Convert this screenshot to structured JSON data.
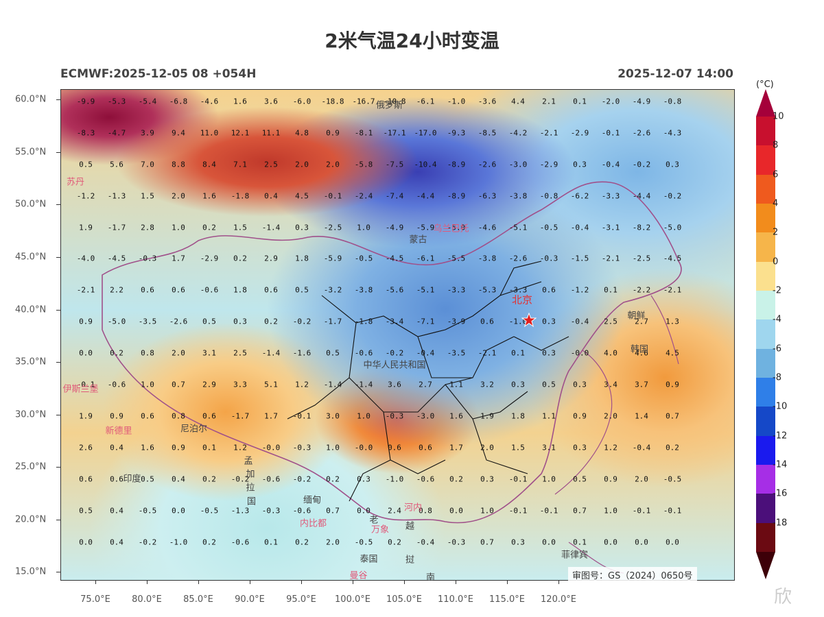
{
  "title": "2米气温24小时变温",
  "subtitle_left": "ECMWF:2025-12-05 08 +054H",
  "subtitle_right": "2025-12-07 14:00",
  "approval": "审图号：GS（2024）0650号",
  "watermark": "欣",
  "legend": {
    "unit": "(°C)",
    "levels": [
      "10",
      "8",
      "6",
      "4",
      "2",
      "0",
      "-2",
      "-4",
      "-6",
      "-8",
      "-10",
      "-12",
      "-14",
      "-16",
      "-18"
    ],
    "colors": [
      "#c8102e",
      "#e8272a",
      "#ef5a1e",
      "#f28c1c",
      "#f6b54a",
      "#fbe08e",
      "#c9f2e8",
      "#9fd6ee",
      "#6fb2e0",
      "#2f7fe8",
      "#1548c8",
      "#1a1aee",
      "#a62ee6",
      "#4b0f7a",
      "#6b0a12"
    ],
    "top_color": "#a5003a",
    "bottom_color": "#3d0008"
  },
  "axes": {
    "y_labels": [
      "60.0°N",
      "55.0°N",
      "50.0°N",
      "45.0°N",
      "40.0°N",
      "35.0°N",
      "30.0°N",
      "25.0°N",
      "20.0°N",
      "15.0°N"
    ],
    "x_labels": [
      "75.0°E",
      "80.0°E",
      "85.0°E",
      "90.0°E",
      "95.0°E",
      "100.0°E",
      "105.0°E",
      "110.0°E",
      "115.0°E",
      "120.0°E"
    ]
  },
  "grid_values": [
    [
      "-9.9",
      "-5.3",
      "-5.4",
      "-6.8",
      "-4.6",
      "1.6",
      "3.6",
      "-6.0",
      "-18.8",
      "-16.7",
      "-10.8",
      "-6.1",
      "-1.0",
      "-3.6",
      "4.4",
      "2.1",
      "0.1",
      "-2.0",
      "-4.9",
      "-0.8"
    ],
    [
      "-8.3",
      "-4.7",
      "3.9",
      "9.4",
      "11.0",
      "12.1",
      "11.1",
      "4.8",
      "0.9",
      "-8.1",
      "-17.1",
      "-17.0",
      "-9.3",
      "-8.5",
      "-4.2",
      "-2.1",
      "-2.9",
      "-0.1",
      "-2.6",
      "-4.3"
    ],
    [
      "0.5",
      "5.6",
      "7.0",
      "8.8",
      "8.4",
      "7.1",
      "2.5",
      "2.0",
      "2.0",
      "-5.8",
      "-7.5",
      "-10.4",
      "-8.9",
      "-2.6",
      "-3.0",
      "-2.9",
      "0.3",
      "-0.4",
      "-0.2",
      "0.3"
    ],
    [
      "-1.2",
      "-1.3",
      "1.5",
      "2.0",
      "1.6",
      "-1.8",
      "0.4",
      "4.5",
      "-0.1",
      "-2.4",
      "-7.4",
      "-4.4",
      "-8.9",
      "-6.3",
      "-3.8",
      "-0.8",
      "-6.2",
      "-3.3",
      "-4.4",
      "-0.2"
    ],
    [
      "1.9",
      "-1.7",
      "2.8",
      "1.0",
      "0.2",
      "1.5",
      "-1.4",
      "0.3",
      "-2.5",
      "1.0",
      "-4.9",
      "-5.9",
      "-5.0",
      "-4.6",
      "-5.1",
      "-0.5",
      "-0.4",
      "-3.1",
      "-8.2",
      "-5.0"
    ],
    [
      "-4.0",
      "-4.5",
      "-0.3",
      "1.7",
      "-2.9",
      "0.2",
      "2.9",
      "1.8",
      "-5.9",
      "-0.5",
      "-4.5",
      "-6.1",
      "-5.5",
      "-3.8",
      "-2.6",
      "-0.3",
      "-1.5",
      "-2.1",
      "-2.5",
      "-4.5"
    ],
    [
      "-2.1",
      "2.2",
      "0.6",
      "0.6",
      "-0.6",
      "1.8",
      "0.6",
      "0.5",
      "-3.2",
      "-3.8",
      "-5.6",
      "-5.1",
      "-3.3",
      "-5.3",
      "-3.3",
      "0.6",
      "-1.2",
      "0.1",
      "-2.2",
      "-2.1"
    ],
    [
      "0.9",
      "-5.0",
      "-3.5",
      "-2.6",
      "0.5",
      "0.3",
      "0.2",
      "-0.2",
      "-1.7",
      "-1.8",
      "-3.4",
      "-7.1",
      "-3.9",
      "0.6",
      "-1.0",
      "0.3",
      "-0.4",
      "2.5",
      "2.7",
      "1.3"
    ],
    [
      "0.0",
      "0.2",
      "0.8",
      "2.0",
      "3.1",
      "2.5",
      "-1.4",
      "-1.6",
      "0.5",
      "-0.6",
      "-0.2",
      "-0.4",
      "-3.5",
      "-2.1",
      "0.1",
      "0.3",
      "-0.0",
      "4.0",
      "4.6",
      "4.5"
    ],
    [
      "-0.1",
      "-0.6",
      "1.0",
      "0.7",
      "2.9",
      "3.3",
      "5.1",
      "1.2",
      "-1.4",
      "-1.4",
      "3.6",
      "2.7",
      "1.1",
      "3.2",
      "0.3",
      "0.5",
      "0.3",
      "3.4",
      "3.7",
      "0.9"
    ],
    [
      "1.9",
      "0.9",
      "0.6",
      "0.8",
      "0.6",
      "-1.7",
      "1.7",
      "-0.1",
      "3.0",
      "1.0",
      "-0.3",
      "-3.0",
      "1.6",
      "1.9",
      "1.8",
      "1.1",
      "0.9",
      "2.0",
      "1.4",
      "0.7"
    ],
    [
      "2.6",
      "0.4",
      "1.6",
      "0.9",
      "0.1",
      "1.2",
      "-0.0",
      "-0.3",
      "1.0",
      "-0.0",
      "0.6",
      "0.6",
      "1.7",
      "2.0",
      "1.5",
      "3.1",
      "0.3",
      "1.2",
      "-0.4",
      "0.2"
    ],
    [
      "0.6",
      "0.6",
      "0.5",
      "0.4",
      "0.2",
      "-0.2",
      "-0.6",
      "-0.2",
      "0.2",
      "0.3",
      "-1.0",
      "-0.6",
      "0.2",
      "0.3",
      "-0.1",
      "1.0",
      "0.5",
      "0.9",
      "2.0",
      "-0.5"
    ],
    [
      "0.5",
      "0.4",
      "-0.5",
      "0.0",
      "-0.5",
      "-1.3",
      "-0.3",
      "-0.6",
      "0.7",
      "0.0",
      "2.4",
      "0.8",
      "0.0",
      "1.0",
      "-0.1",
      "-0.1",
      "0.7",
      "1.0",
      "-0.1",
      "-0.1"
    ],
    [
      "0.0",
      "0.4",
      "-0.2",
      "-1.0",
      "0.2",
      "-0.6",
      "0.1",
      "0.2",
      "2.0",
      "-0.5",
      "0.2",
      "-0.4",
      "-0.3",
      "0.7",
      "0.3",
      "0.0",
      "0.1",
      "0.0",
      "0.0",
      "0.0"
    ]
  ],
  "places": [
    {
      "name": "俄罗斯",
      "style": "gray",
      "lon": 103.5,
      "lat": 59.6
    },
    {
      "name": "苏丹",
      "style": "pink",
      "lon": 73.0,
      "lat": 52.3
    },
    {
      "name": "乌兰巴托",
      "style": "pink",
      "lon": 109.5,
      "lat": 47.9
    },
    {
      "name": "蒙古",
      "style": "gray",
      "lon": 106.3,
      "lat": 46.8
    },
    {
      "name": "北京",
      "style": "red",
      "lon": 116.4,
      "lat": 41.0
    },
    {
      "name": "朝鲜",
      "style": "gray",
      "lon": 127.5,
      "lat": 39.6
    },
    {
      "name": "韩国",
      "style": "gray",
      "lon": 127.8,
      "lat": 36.4
    },
    {
      "name": "中华人民共和国",
      "style": "gray",
      "lon": 104.0,
      "lat": 34.9
    },
    {
      "name": "伊斯兰堡",
      "style": "pink",
      "lon": 73.5,
      "lat": 32.6
    },
    {
      "name": "新德里",
      "style": "pink",
      "lon": 77.2,
      "lat": 28.6
    },
    {
      "name": "尼泊尔",
      "style": "gray",
      "lon": 84.5,
      "lat": 28.8
    },
    {
      "name": "印度",
      "style": "gray",
      "lon": 78.5,
      "lat": 24.0
    },
    {
      "name": "孟",
      "style": "gray",
      "lon": 89.8,
      "lat": 25.7
    },
    {
      "name": "加",
      "style": "gray",
      "lon": 90.0,
      "lat": 24.5
    },
    {
      "name": "拉",
      "style": "gray",
      "lon": 90.0,
      "lat": 23.2
    },
    {
      "name": "国",
      "style": "gray",
      "lon": 90.1,
      "lat": 21.9
    },
    {
      "name": "缅甸",
      "style": "gray",
      "lon": 96.0,
      "lat": 22.0
    },
    {
      "name": "内比都",
      "style": "pink",
      "lon": 96.1,
      "lat": 19.8
    },
    {
      "name": "河内",
      "style": "pink",
      "lon": 105.8,
      "lat": 21.3
    },
    {
      "name": "老",
      "style": "gray",
      "lon": 102.0,
      "lat": 20.1
    },
    {
      "name": "越",
      "style": "gray",
      "lon": 105.5,
      "lat": 19.5
    },
    {
      "name": "万象",
      "style": "pink",
      "lon": 102.6,
      "lat": 19.2
    },
    {
      "name": "泰国",
      "style": "gray",
      "lon": 101.5,
      "lat": 16.4
    },
    {
      "name": "曼谷",
      "style": "pink",
      "lon": 100.5,
      "lat": 14.8
    },
    {
      "name": "挝",
      "style": "gray",
      "lon": 105.5,
      "lat": 16.3
    },
    {
      "name": "南",
      "style": "gray",
      "lon": 107.5,
      "lat": 14.6
    },
    {
      "name": "菲律宾",
      "style": "gray",
      "lon": 121.5,
      "lat": 16.8
    }
  ]
}
